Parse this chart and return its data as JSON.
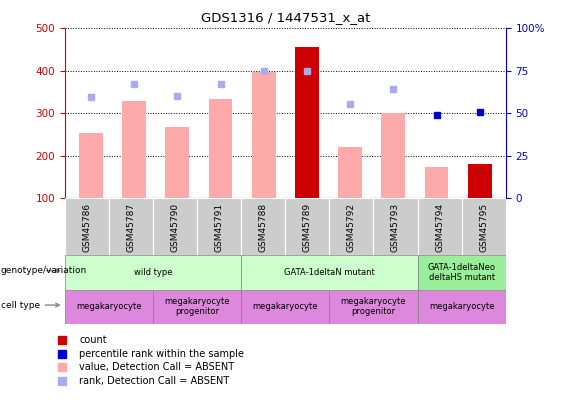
{
  "title": "GDS1316 / 1447531_x_at",
  "samples": [
    "GSM45786",
    "GSM45787",
    "GSM45790",
    "GSM45791",
    "GSM45788",
    "GSM45789",
    "GSM45792",
    "GSM45793",
    "GSM45794",
    "GSM45795"
  ],
  "bar_values": [
    255,
    330,
    268,
    333,
    397,
    455,
    220,
    300,
    173,
    182
  ],
  "bar_colors": [
    "#ffaaaa",
    "#ffaaaa",
    "#ffaaaa",
    "#ffaaaa",
    "#ffaaaa",
    "#cc0000",
    "#ffaaaa",
    "#ffaaaa",
    "#ffaaaa",
    "#cc0000"
  ],
  "rank_dots": [
    338,
    368,
    342,
    368,
    400,
    400,
    323,
    358,
    297,
    303
  ],
  "rank_dot_colors": [
    "#aaaaee",
    "#aaaaee",
    "#aaaaee",
    "#aaaaee",
    "#aaaaee",
    "#aaaaee",
    "#aaaaee",
    "#aaaaee",
    "#0000cc",
    "#0000cc"
  ],
  "ylim_left": [
    100,
    500
  ],
  "ylim_right": [
    0,
    100
  ],
  "yticks_left": [
    100,
    200,
    300,
    400,
    500
  ],
  "yticks_right": [
    0,
    25,
    50,
    75,
    100
  ],
  "yticklabels_right": [
    "0",
    "25",
    "50",
    "75",
    "100%"
  ],
  "left_axis_color": "#cc0000",
  "right_axis_color": "#0000cc",
  "geno_groups": [
    {
      "label": "wild type",
      "start": 0,
      "end": 4,
      "color": "#ccffcc"
    },
    {
      "label": "GATA-1deltaN mutant",
      "start": 4,
      "end": 8,
      "color": "#ccffcc"
    },
    {
      "label": "GATA-1deltaNeo\ndeltaHS mutant",
      "start": 8,
      "end": 10,
      "color": "#99ee99"
    }
  ],
  "cell_groups": [
    {
      "label": "megakaryocyte",
      "start": 0,
      "end": 2,
      "color": "#dd88dd"
    },
    {
      "label": "megakaryocyte\nprogenitor",
      "start": 2,
      "end": 4,
      "color": "#dd88dd"
    },
    {
      "label": "megakaryocyte",
      "start": 4,
      "end": 6,
      "color": "#dd88dd"
    },
    {
      "label": "megakaryocyte\nprogenitor",
      "start": 6,
      "end": 8,
      "color": "#dd88dd"
    },
    {
      "label": "megakaryocyte",
      "start": 8,
      "end": 10,
      "color": "#dd88dd"
    }
  ],
  "legend_items": [
    {
      "color": "#cc0000",
      "label": "count"
    },
    {
      "color": "#0000cc",
      "label": "percentile rank within the sample"
    },
    {
      "color": "#ffaaaa",
      "label": "value, Detection Call = ABSENT"
    },
    {
      "color": "#aaaaee",
      "label": "rank, Detection Call = ABSENT"
    }
  ],
  "label_arrow_text": [
    "genotype/variation",
    "cell type"
  ]
}
